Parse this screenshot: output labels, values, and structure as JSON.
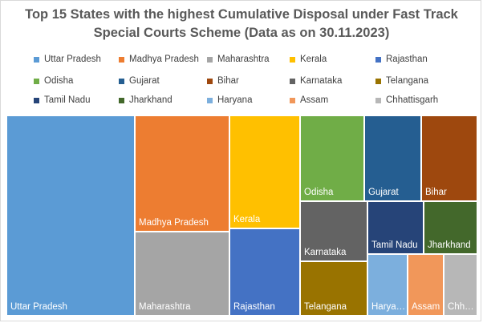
{
  "chart_data": {
    "type": "treemap",
    "title_lines": [
      "Top 15 States with the highest Cumulative Disposal under Fast Track",
      "Special Courts Scheme (Data as on 30.11.2023)"
    ],
    "legend_position": "top",
    "categories": [
      {
        "name": "Uttar Pradesh",
        "label": "Uttar Pradesh",
        "color": "#5B9BD5"
      },
      {
        "name": "Madhya Pradesh",
        "label": "Madhya Pradesh",
        "color": "#ED7D31"
      },
      {
        "name": "Maharashtra",
        "label": "Maharashtra",
        "color": "#A5A5A5"
      },
      {
        "name": "Kerala",
        "label": "Kerala",
        "color": "#FFC000"
      },
      {
        "name": "Rajasthan",
        "label": "Rajasthan",
        "color": "#4472C4"
      },
      {
        "name": "Odisha",
        "label": "Odisha",
        "color": "#70AD47"
      },
      {
        "name": "Gujarat",
        "label": "Gujarat",
        "color": "#255E91"
      },
      {
        "name": "Bihar",
        "label": "Bihar",
        "color": "#9E480E"
      },
      {
        "name": "Karnataka",
        "label": "Karnataka",
        "color": "#636363"
      },
      {
        "name": "Telangana",
        "label": "Telangana",
        "color": "#997300"
      },
      {
        "name": "Tamil Nadu",
        "label": "Tamil Nadu",
        "color": "#264478"
      },
      {
        "name": "Jharkhand",
        "label": "Jharkhand",
        "color": "#43682B"
      },
      {
        "name": "Haryana",
        "label": "Harya…",
        "color": "#7CAFDD"
      },
      {
        "name": "Assam",
        "label": "Assam",
        "color": "#F1975A"
      },
      {
        "name": "Chhattisgarh",
        "label": "Chh…",
        "color": "#B7B7B7"
      }
    ],
    "relative_size": [
      37.8,
      17.1,
      13.7,
      10.5,
      9.0,
      7.3,
      5.7,
      5.5,
      4.9,
      4.1,
      3.4,
      3.3,
      2.7,
      2.4,
      2.3
    ]
  }
}
